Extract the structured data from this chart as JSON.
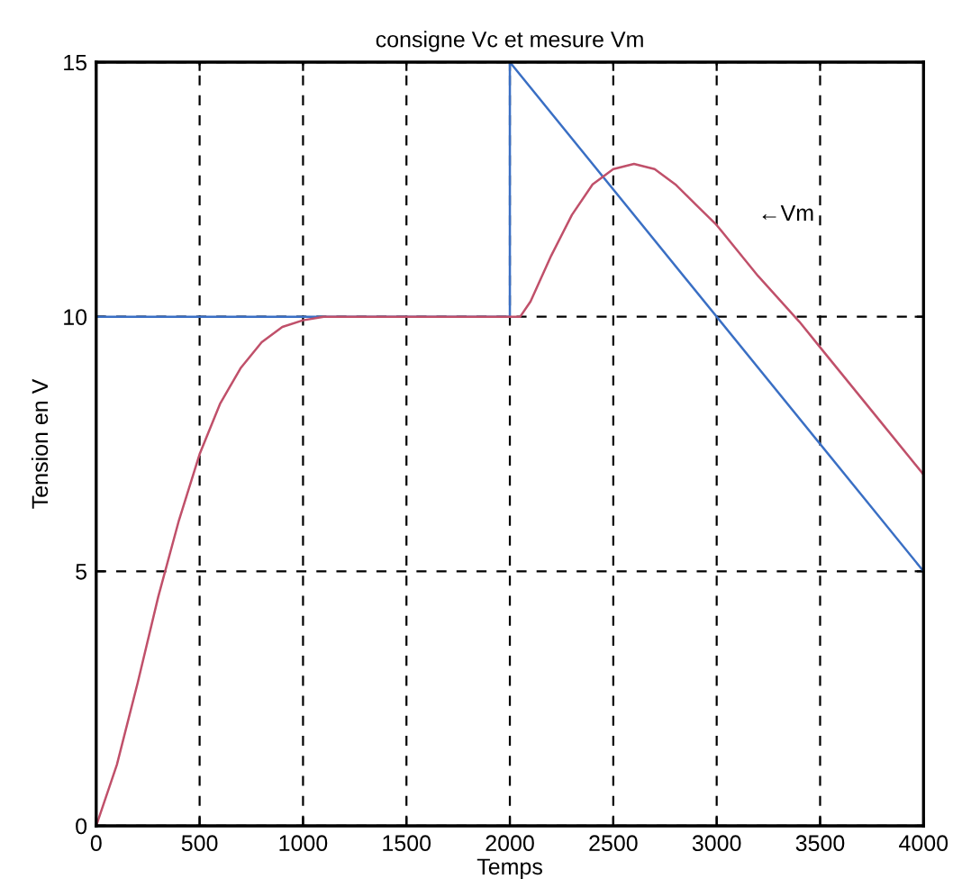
{
  "chart_data": {
    "type": "line",
    "title": "consigne Vc et mesure Vm",
    "xlabel": "Temps",
    "ylabel": "Tension en V",
    "series": [
      {
        "x": [
          0,
          2000,
          2000,
          4000,
          4000
        ],
        "values": [
          10,
          10,
          15,
          5,
          15
        ],
        "color": "#3a6fc4"
      },
      {
        "x": [
          0,
          100,
          200,
          300,
          400,
          500,
          600,
          700,
          800,
          900,
          1000,
          1100,
          2000,
          2050,
          2100,
          2200,
          2300,
          2400,
          2500,
          2600,
          2700,
          2800,
          2900,
          3000,
          3200,
          3400,
          3500,
          3600,
          3800,
          4000
        ],
        "values": [
          0,
          1.2,
          2.8,
          4.5,
          6,
          7.3,
          8.3,
          9.0,
          9.5,
          9.8,
          9.93,
          10,
          10,
          10,
          10.3,
          11.2,
          12,
          12.6,
          12.9,
          13,
          12.9,
          12.6,
          12.2,
          11.8,
          10.8,
          9.9,
          9.4,
          8.9,
          7.9,
          6.9
        ],
        "color": "#c0506a"
      }
    ],
    "annotations": [
      "←Vm"
    ],
    "xlim": [
      0,
      4000
    ],
    "xticks": [
      0,
      500,
      1000,
      1500,
      2000,
      2500,
      3000,
      3500,
      4000
    ],
    "ylim": [
      0,
      15
    ],
    "yticks": [
      0,
      5,
      10,
      15
    ],
    "grid": true,
    "line_style": "solid",
    "marker": "none"
  }
}
